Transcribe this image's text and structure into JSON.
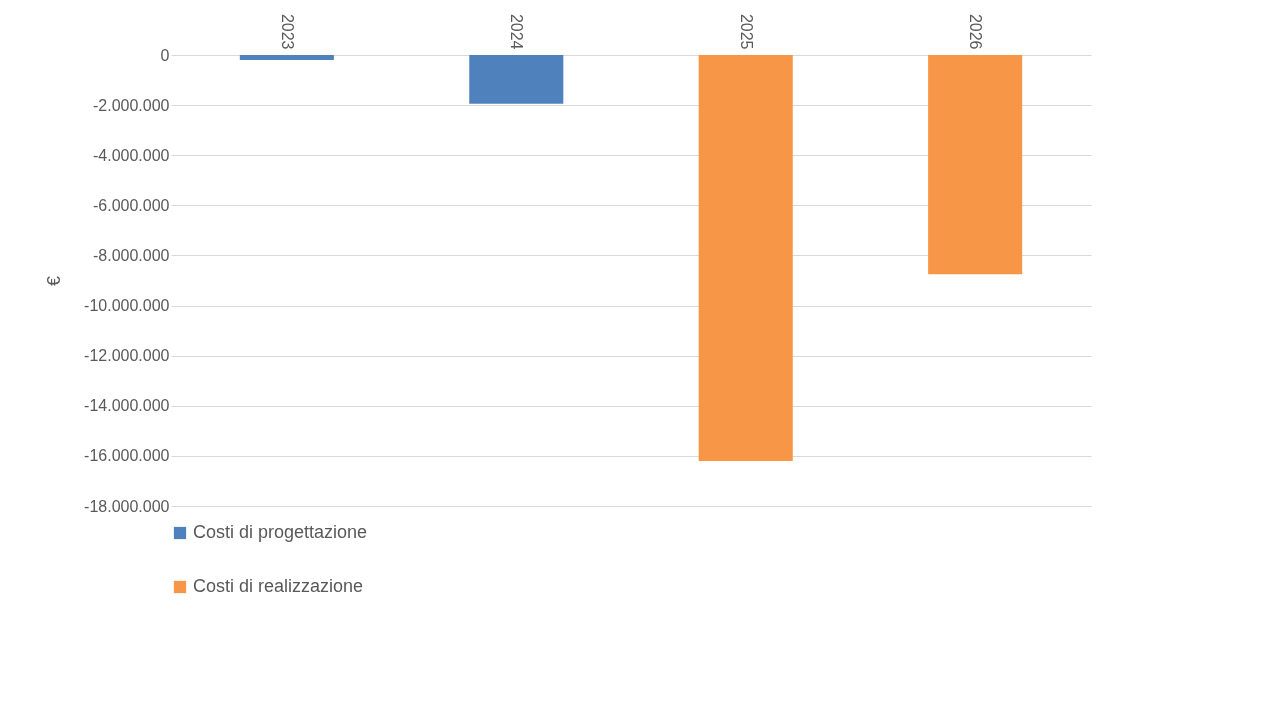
{
  "chart_data": {
    "type": "bar",
    "stacked": true,
    "ylabel": "€",
    "categories": [
      "2023",
      "2024",
      "2025",
      "2026"
    ],
    "series": [
      {
        "name": "Costi di progettazione",
        "color": "#4f81bd",
        "values": [
          -200000,
          -1950000,
          null,
          null
        ]
      },
      {
        "name": "Costi di realizzazione",
        "color": "#f79646",
        "values": [
          null,
          null,
          -16200000,
          -8750000
        ]
      }
    ],
    "ylim": [
      -18000000,
      0
    ],
    "yticks": [
      0,
      {
        "value": -2000000,
        "label": "-2.000.000"
      },
      {
        "value": -4000000,
        "label": "-4.000.000"
      },
      {
        "value": -6000000,
        "label": "-6.000.000"
      },
      {
        "value": -8000000,
        "label": "-8.000.000"
      },
      {
        "value": -10000000,
        "label": "-10.000.000"
      },
      {
        "value": -12000000,
        "label": "-12.000.000"
      },
      {
        "value": -14000000,
        "label": "-14.000.000"
      },
      {
        "value": -16000000,
        "label": "-16.000.000"
      },
      {
        "value": -18000000,
        "label": "-18.000.000"
      }
    ],
    "grid": "y",
    "legend": "bottom"
  }
}
